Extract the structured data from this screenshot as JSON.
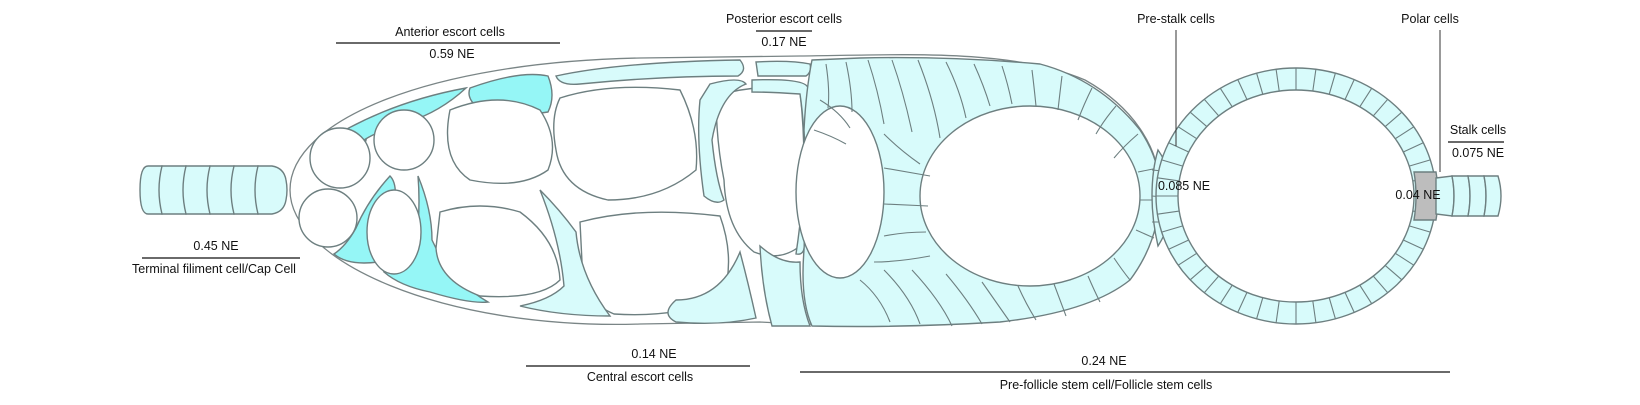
{
  "labels": {
    "anterior_title": "Anterior escort cells",
    "anterior_value": "0.59 NE",
    "posterior_title": "Posterior escort cells",
    "posterior_value": "0.17 NE",
    "prestalk_title": "Pre-stalk cells",
    "polar_title": "Polar cells",
    "stalk_title": "Stalk cells",
    "stalk_value": "0.075 NE",
    "prestalk_value": "0.085 NE",
    "polar_value": "0.04 NE",
    "tf_value": "0.45 NE",
    "tf_title": "Terminal filiment cell/Cap Cell",
    "central_value": "0.14 NE",
    "central_title": "Central escort cells",
    "follicle_value": "0.24 NE",
    "follicle_title": "Pre-follicle stem cell/Follicle stem cells"
  },
  "colors": {
    "pale_cyan": "#d8fbfb",
    "bright_cyan": "#95f6f6",
    "polar_gray": "#bdbdbd",
    "outline": "#6d7f80"
  }
}
